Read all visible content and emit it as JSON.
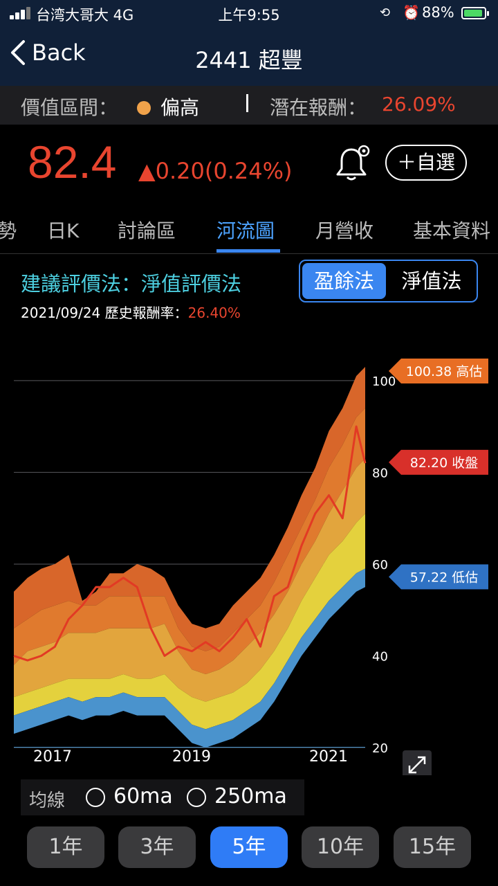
{
  "status": {
    "carrier": "台湾大哥大  4G",
    "time": "上午9:55",
    "battery": "88%",
    "battery_level": 0.88
  },
  "nav": {
    "back_label": "Back",
    "title": "2441 超豐"
  },
  "valuation": {
    "label": "價值區間：",
    "level": "偏高",
    "level_color": "#f0a24a",
    "return_label": "潛在報酬：",
    "return_value": "26.09%"
  },
  "quote": {
    "price": "82.4",
    "change": "▲0.20(0.24%)",
    "watch_button": "＋自選"
  },
  "tabs": [
    "勢",
    "日K",
    "討論區",
    "河流圖",
    "月營收",
    "基本資料"
  ],
  "active_tab": "河流圖",
  "method": {
    "title": "建議評價法：淨值評價法",
    "date": "2021/09/24",
    "hist_label": "歷史報酬率：",
    "hist_value": "26.40%",
    "options": [
      "盈餘法",
      "淨值法"
    ],
    "selected": "盈餘法"
  },
  "chart_data": {
    "type": "area",
    "x_ticks": [
      "2017",
      "2019",
      "2021"
    ],
    "y_ticks": [
      20,
      40,
      60,
      80,
      100
    ],
    "ylim": [
      20,
      103
    ],
    "grid": true,
    "tags": [
      {
        "text": "100.38 高估",
        "value": 100.38,
        "color": "#e86e24"
      },
      {
        "text": "82.20 收盤",
        "value": 82.2,
        "color": "#d8302a"
      },
      {
        "text": "57.22 低估",
        "value": 57.22,
        "color": "#2f72c4"
      }
    ],
    "x": [
      2016.6,
      2016.8,
      2017.0,
      2017.2,
      2017.4,
      2017.6,
      2017.8,
      2018.0,
      2018.2,
      2018.4,
      2018.6,
      2018.8,
      2019.0,
      2019.2,
      2019.4,
      2019.6,
      2019.8,
      2020.0,
      2020.2,
      2020.4,
      2020.6,
      2020.8,
      2021.0,
      2021.2,
      2021.4,
      2021.6,
      2021.73
    ],
    "series": [
      {
        "values": [
          27,
          28,
          29,
          30,
          31,
          30,
          31,
          31,
          32,
          31,
          31,
          31,
          28,
          25,
          24,
          25,
          26,
          28,
          30,
          34,
          39,
          44,
          48,
          52,
          55,
          58,
          59
        ]
      },
      {
        "values": [
          31,
          32,
          33,
          34,
          35,
          35,
          35,
          35,
          36,
          35,
          35,
          36,
          33,
          31,
          30,
          31,
          32,
          34,
          37,
          41,
          46,
          52,
          57,
          62,
          65,
          69,
          71
        ]
      },
      {
        "values": [
          38,
          41,
          42,
          43,
          45,
          45,
          45,
          46,
          46,
          46,
          46,
          47,
          41,
          37,
          36,
          37,
          39,
          42,
          45,
          49,
          54,
          60,
          65,
          71,
          76,
          81,
          83
        ]
      },
      {
        "values": [
          46,
          48,
          50,
          51,
          52,
          51,
          51,
          53,
          53,
          53,
          53,
          53,
          46,
          42,
          41,
          42,
          45,
          48,
          51,
          56,
          62,
          68,
          74,
          81,
          86,
          92,
          94
        ]
      },
      {
        "values": [
          54,
          57,
          59,
          60,
          62,
          52,
          54,
          58,
          58,
          60,
          59,
          57,
          51,
          47,
          46,
          47,
          51,
          54,
          57,
          62,
          68,
          75,
          81,
          89,
          94,
          101,
          103
        ]
      }
    ],
    "price_line": {
      "values": [
        40,
        39,
        40,
        42,
        48,
        51,
        55,
        55,
        57,
        55,
        46,
        40,
        42,
        41,
        43,
        41,
        44,
        48,
        42,
        53,
        55,
        64,
        71,
        75,
        70,
        90,
        82
      ]
    },
    "band_colors": [
      "#4a93cd",
      "#e4d13d",
      "#e2a53d",
      "#e07a2e",
      "#d8662a"
    ],
    "price_color": "#e23a24"
  },
  "ma": {
    "label": "均線",
    "opt1": "60ma",
    "opt2": "250ma"
  },
  "ranges": [
    "1年",
    "3年",
    "5年",
    "10年",
    "15年"
  ],
  "active_range": "5年"
}
